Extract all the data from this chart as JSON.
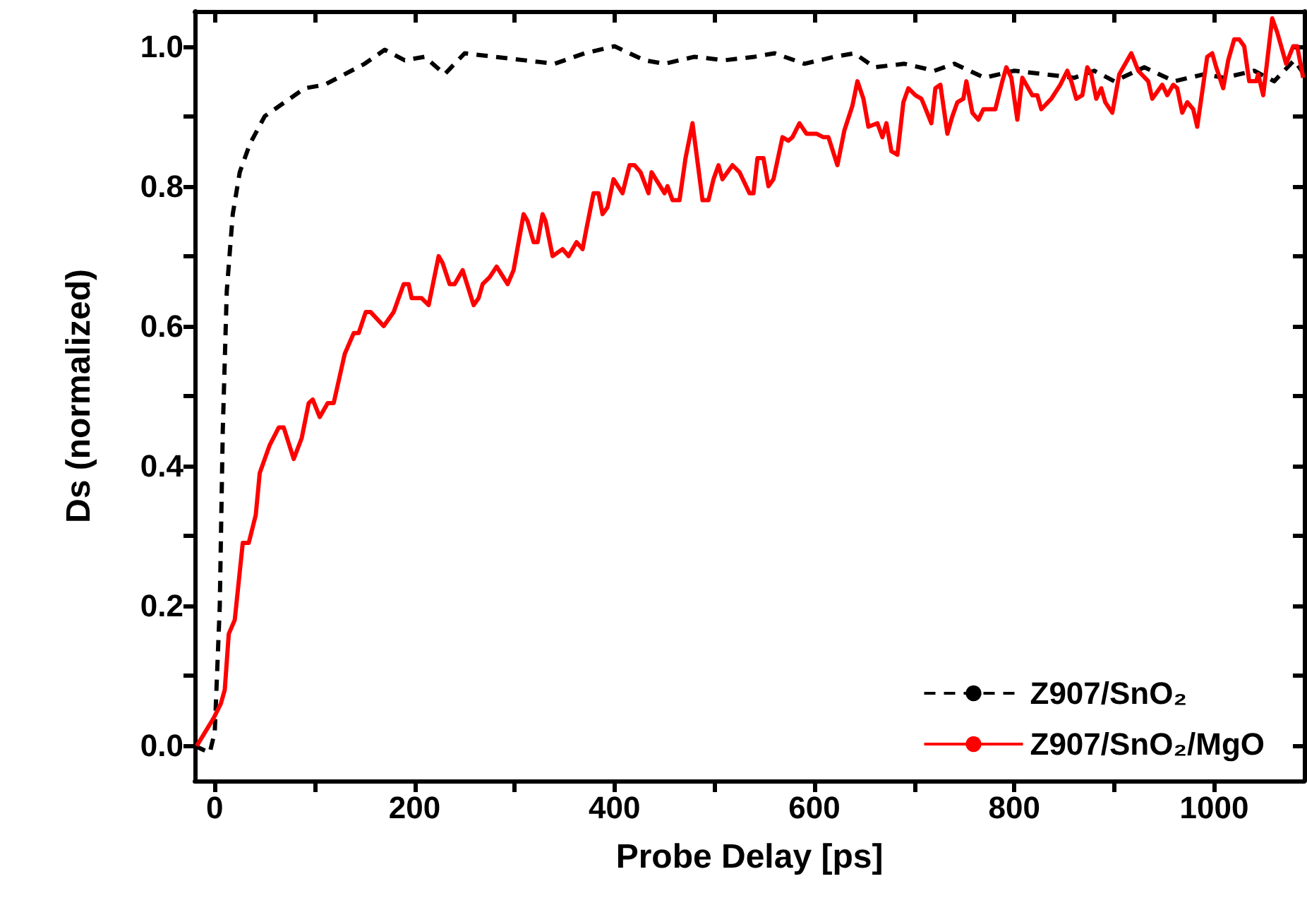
{
  "chart_data": {
    "type": "line",
    "xlabel": "Probe Delay [ps]",
    "ylabel": "Ds (normalized)",
    "xlim": [
      -20,
      1090
    ],
    "ylim": [
      -0.05,
      1.05
    ],
    "xticks": [
      0,
      {
        "value": 100,
        "label": null
      },
      200,
      {
        "value": 300,
        "label": null
      },
      400,
      {
        "value": 500,
        "label": null
      },
      600,
      {
        "value": 700,
        "label": null
      },
      800,
      {
        "value": 900,
        "label": null
      },
      1000
    ],
    "yticks": [
      {
        "value": 0,
        "label": "0.0"
      },
      {
        "value": 0.1,
        "label": null
      },
      0.2,
      {
        "value": 0.3,
        "label": null
      },
      0.4,
      {
        "value": 0.5,
        "label": null
      },
      0.6,
      {
        "value": 0.7,
        "label": null
      },
      0.8,
      {
        "value": 0.9,
        "label": null
      },
      {
        "value": 1,
        "label": "1.0"
      }
    ],
    "grid": false,
    "legend": "bottom right",
    "marker": "none",
    "series": [
      {
        "name": "Z907/SnO₂",
        "color": "#000000",
        "line_style": "dashed",
        "x": [
          -20,
          -5,
          0,
          5,
          8,
          12,
          18,
          25,
          35,
          50,
          70,
          90,
          110,
          130,
          150,
          170,
          190,
          210,
          230,
          250,
          280,
          310,
          340,
          370,
          400,
          430,
          450,
          480,
          510,
          540,
          560,
          590,
          620,
          640,
          660,
          690,
          720,
          740,
          770,
          800,
          830,
          860,
          880,
          900,
          930,
          960,
          990,
          1010,
          1040,
          1060,
          1080,
          1090
        ],
        "values": [
          0.0,
          -0.01,
          0.02,
          0.2,
          0.45,
          0.65,
          0.76,
          0.82,
          0.86,
          0.9,
          0.92,
          0.94,
          0.945,
          0.96,
          0.975,
          0.995,
          0.98,
          0.985,
          0.96,
          0.99,
          0.985,
          0.98,
          0.975,
          0.99,
          1.0,
          0.98,
          0.975,
          0.985,
          0.98,
          0.985,
          0.99,
          0.975,
          0.985,
          0.99,
          0.97,
          0.975,
          0.965,
          0.975,
          0.955,
          0.965,
          0.96,
          0.955,
          0.965,
          0.95,
          0.97,
          0.95,
          0.96,
          0.955,
          0.965,
          0.95,
          0.98,
          0.96
        ]
      },
      {
        "name": "Z907/SnO₂/MgO",
        "color": "#ff0000",
        "line_style": "solid",
        "x": [
          -18,
          -1,
          6,
          10,
          14,
          20,
          28,
          34,
          41,
          45,
          55,
          64,
          69,
          79,
          87,
          94,
          98,
          105,
          113,
          119,
          130,
          139,
          144,
          151,
          156,
          169,
          179,
          189,
          194,
          197,
          207,
          214,
          224,
          228,
          235,
          240,
          248,
          259,
          264,
          268,
          275,
          282,
          293,
          299,
          309,
          313,
          319,
          323,
          328,
          331,
          338,
          348,
          354,
          362,
          368,
          372,
          379,
          384,
          388,
          393,
          399,
          408,
          415,
          420,
          426,
          434,
          437,
          450,
          453,
          458,
          465,
          471,
          478,
          488,
          494,
          499,
          504,
          508,
          518,
          525,
          535,
          539,
          543,
          549,
          554,
          559,
          568,
          574,
          578,
          585,
          592,
          602,
          609,
          614,
          623,
          630,
          638,
          643,
          649,
          654,
          663,
          668,
          672,
          677,
          683,
          689,
          694,
          701,
          707,
          710,
          717,
          721,
          726,
          733,
          738,
          743,
          749,
          752,
          758,
          764,
          769,
          774,
          781,
          788,
          792,
          797,
          803,
          808,
          814,
          818,
          823,
          827,
          837,
          846,
          853,
          857,
          862,
          868,
          873,
          877,
          882,
          887,
          891,
          898,
          905,
          917,
          924,
          934,
          938,
          943,
          948,
          953,
          959,
          963,
          968,
          973,
          979,
          983,
          993,
          998,
          1002,
          1009,
          1014,
          1020,
          1025,
          1030,
          1035,
          1042,
          1044,
          1049,
          1058,
          1063,
          1072,
          1079,
          1083,
          1089
        ],
        "values": [
          0.0,
          0.04,
          0.06,
          0.08,
          0.16,
          0.18,
          0.29,
          0.29,
          0.33,
          0.39,
          0.43,
          0.455,
          0.455,
          0.41,
          0.44,
          0.49,
          0.495,
          0.47,
          0.49,
          0.49,
          0.56,
          0.59,
          0.59,
          0.62,
          0.62,
          0.6,
          0.62,
          0.66,
          0.66,
          0.64,
          0.64,
          0.63,
          0.7,
          0.69,
          0.66,
          0.66,
          0.68,
          0.63,
          0.64,
          0.66,
          0.67,
          0.685,
          0.66,
          0.68,
          0.76,
          0.75,
          0.72,
          0.72,
          0.76,
          0.75,
          0.7,
          0.71,
          0.7,
          0.72,
          0.71,
          0.74,
          0.79,
          0.79,
          0.76,
          0.77,
          0.81,
          0.79,
          0.83,
          0.83,
          0.82,
          0.79,
          0.82,
          0.79,
          0.8,
          0.78,
          0.78,
          0.84,
          0.89,
          0.78,
          0.78,
          0.81,
          0.83,
          0.81,
          0.83,
          0.82,
          0.79,
          0.79,
          0.84,
          0.84,
          0.8,
          0.81,
          0.87,
          0.865,
          0.87,
          0.89,
          0.875,
          0.875,
          0.87,
          0.87,
          0.83,
          0.88,
          0.915,
          0.95,
          0.925,
          0.885,
          0.89,
          0.87,
          0.89,
          0.85,
          0.845,
          0.92,
          0.94,
          0.93,
          0.925,
          0.915,
          0.89,
          0.94,
          0.945,
          0.875,
          0.9,
          0.92,
          0.925,
          0.95,
          0.905,
          0.895,
          0.91,
          0.91,
          0.91,
          0.95,
          0.97,
          0.955,
          0.895,
          0.955,
          0.94,
          0.93,
          0.93,
          0.91,
          0.925,
          0.945,
          0.965,
          0.95,
          0.925,
          0.93,
          0.97,
          0.96,
          0.925,
          0.94,
          0.92,
          0.905,
          0.96,
          0.99,
          0.965,
          0.95,
          0.925,
          0.935,
          0.945,
          0.93,
          0.945,
          0.94,
          0.905,
          0.92,
          0.91,
          0.885,
          0.985,
          0.99,
          0.97,
          0.94,
          0.98,
          1.01,
          1.01,
          1.0,
          0.95,
          0.95,
          0.96,
          0.93,
          1.04,
          1.02,
          0.975,
          1.0,
          1.0,
          0.955
        ]
      }
    ]
  }
}
